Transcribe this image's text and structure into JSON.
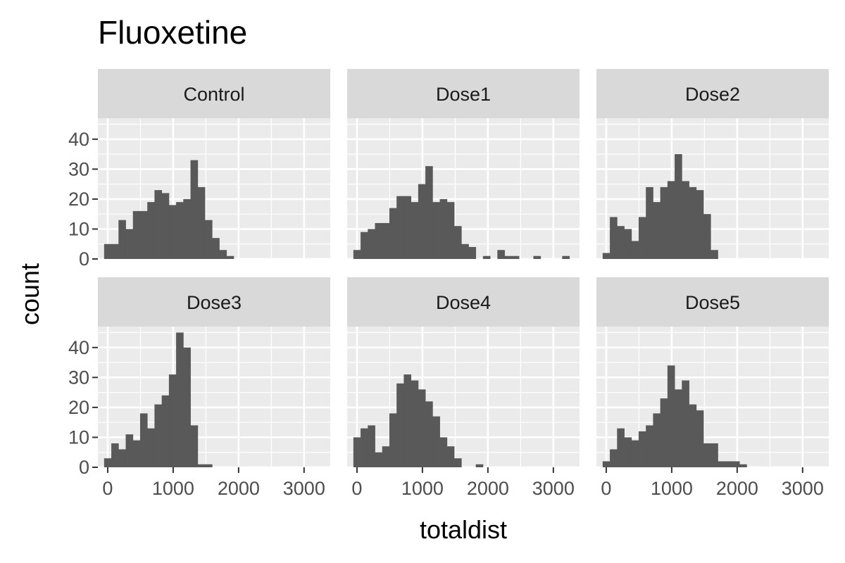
{
  "chart_data": {
    "type": "bar",
    "title": "Fluoxetine",
    "xlabel": "totaldist",
    "ylabel": "count",
    "xlim": [
      -150,
      3400
    ],
    "ylim": [
      0,
      47
    ],
    "x_ticks": [
      "0",
      "1000",
      "2000",
      "3000"
    ],
    "y_ticks": [
      "0",
      "10",
      "20",
      "30",
      "40"
    ],
    "bin_centers": [
      0,
      110,
      220,
      330,
      440,
      550,
      660,
      770,
      880,
      990,
      1100,
      1210,
      1320,
      1430,
      1540,
      1650,
      1760,
      1870,
      1980,
      2090,
      2200,
      2310,
      2420,
      2530,
      2640,
      2750,
      2860,
      2970,
      3080,
      3190
    ],
    "bin_width": 110,
    "grid": true,
    "panels": [
      {
        "label": "Control",
        "values": [
          5,
          5,
          13,
          10,
          16,
          16,
          19,
          23,
          22,
          18,
          19,
          20,
          33,
          24,
          13,
          7,
          3,
          1,
          0,
          0,
          0,
          0,
          0,
          0,
          0,
          0,
          0,
          0,
          0,
          0
        ]
      },
      {
        "label": "Dose1",
        "values": [
          3,
          9,
          10,
          12,
          12,
          17,
          21,
          21,
          19,
          25,
          31,
          19,
          20,
          19,
          11,
          5,
          4,
          0,
          1,
          0,
          3,
          1,
          1,
          0,
          0,
          1,
          0,
          0,
          0,
          1
        ]
      },
      {
        "label": "Dose2",
        "values": [
          2,
          14,
          11,
          10,
          6,
          14,
          24,
          19,
          24,
          26,
          35,
          26,
          24,
          23,
          15,
          3,
          0,
          0,
          0,
          0,
          0,
          0,
          0,
          0,
          0,
          0,
          0,
          0,
          0,
          0
        ]
      },
      {
        "label": "Dose3",
        "values": [
          3,
          8,
          6,
          11,
          9,
          18,
          13,
          21,
          24,
          31,
          45,
          40,
          14,
          1,
          1,
          0,
          0,
          0,
          0,
          0,
          0,
          0,
          0,
          0,
          0,
          0,
          0,
          0,
          0,
          0
        ]
      },
      {
        "label": "Dose4",
        "values": [
          10,
          13,
          14,
          5,
          7,
          18,
          28,
          31,
          29,
          26,
          22,
          17,
          10,
          7,
          3,
          0,
          0,
          1,
          0,
          0,
          0,
          0,
          0,
          0,
          0,
          0,
          0,
          0,
          0,
          0
        ]
      },
      {
        "label": "Dose5",
        "values": [
          2,
          6,
          13,
          10,
          9,
          12,
          14,
          18,
          23,
          34,
          26,
          29,
          21,
          19,
          8,
          8,
          2,
          2,
          2,
          1,
          0,
          0,
          0,
          0,
          0,
          0,
          0,
          0,
          0,
          0
        ]
      }
    ]
  },
  "colors": {
    "bar": "#595959",
    "panel_background": "#ebebeb",
    "strip_background": "#d9d9d9",
    "grid": "#ffffff",
    "tick": "#333333"
  }
}
